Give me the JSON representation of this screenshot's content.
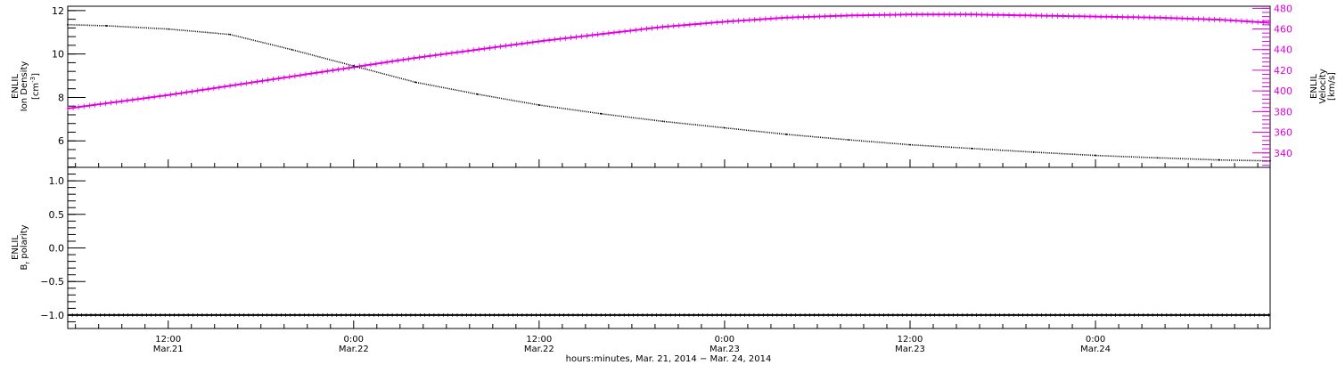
{
  "colors": {
    "axis": "#000000",
    "density": "#000000",
    "velocity": "#e000e0",
    "polarity": "#000000"
  },
  "chart_data": [
    {
      "type": "line",
      "panel": "top",
      "x_unit": "hours since 2014-03-21 00:00",
      "xlim": [
        5.5,
        83.3
      ],
      "grid": false,
      "left_axis": {
        "label_line1": "ENLIL",
        "label_line2": "Ion Density",
        "unit_base": "[cm",
        "unit_exp": "-3",
        "unit_close": "]",
        "ylim": [
          4.78,
          12.2
        ],
        "ticks": [
          6,
          8,
          10,
          12
        ],
        "tick_labels": [
          "6",
          "8",
          "10",
          "12"
        ]
      },
      "right_axis": {
        "label_line1": "ENLIL",
        "label_line2": "Velocity",
        "label_line3": "[km/s]",
        "ylim": [
          326,
          482
        ],
        "ticks": [
          340,
          360,
          380,
          400,
          420,
          440,
          460,
          480
        ],
        "tick_labels": [
          "340",
          "360",
          "380",
          "400",
          "420",
          "440",
          "460",
          "480"
        ]
      },
      "series": [
        {
          "axis": "left",
          "x": [
            5.5,
            8,
            12,
            16,
            20,
            24,
            28,
            32,
            36,
            40,
            44,
            48,
            52,
            56,
            60,
            64,
            68,
            72,
            76,
            80,
            83.3
          ],
          "y": [
            11.35,
            11.3,
            11.15,
            10.9,
            10.2,
            9.45,
            8.7,
            8.15,
            7.65,
            7.25,
            6.9,
            6.6,
            6.3,
            6.05,
            5.82,
            5.65,
            5.48,
            5.33,
            5.22,
            5.12,
            5.08
          ]
        },
        {
          "axis": "right",
          "x": [
            5.5,
            8,
            12,
            16,
            20,
            24,
            28,
            32,
            36,
            40,
            44,
            48,
            52,
            56,
            60,
            64,
            68,
            72,
            76,
            80,
            83.3
          ],
          "y": [
            383,
            388,
            396,
            405,
            414,
            423,
            432,
            440,
            448,
            455,
            462,
            467,
            471,
            473,
            474,
            474,
            473,
            472,
            471,
            469,
            466
          ]
        }
      ]
    },
    {
      "type": "line",
      "panel": "bottom",
      "x_unit": "hours since 2014-03-21 00:00",
      "xlim": [
        5.5,
        83.3
      ],
      "grid": false,
      "left_axis": {
        "label_line1": "ENLIL",
        "label_line2": "B",
        "label_sub": "r",
        "label_rest": " polarity",
        "ylim": [
          -1.2,
          1.2
        ],
        "ticks": [
          -1.0,
          -0.5,
          0.0,
          0.5,
          1.0
        ],
        "tick_labels": [
          "−1.0",
          "−0.5",
          "0.0",
          "0.5",
          "1.0"
        ]
      },
      "series": [
        {
          "x": [
            5.5,
            83.3
          ],
          "y": [
            -1.0,
            -1.0
          ]
        }
      ]
    }
  ],
  "x_axis": {
    "ticks": [
      12,
      24,
      36,
      48,
      60,
      72
    ],
    "time_labels": [
      "12:00",
      "0:00",
      "12:00",
      "0:00",
      "12:00",
      "0:00"
    ],
    "date_labels": [
      "Mar.21",
      "Mar.22",
      "Mar.22",
      "Mar.23",
      "Mar.23",
      "Mar.24"
    ],
    "title": "hours:minutes, Mar. 21, 2014 − Mar. 24, 2014"
  }
}
